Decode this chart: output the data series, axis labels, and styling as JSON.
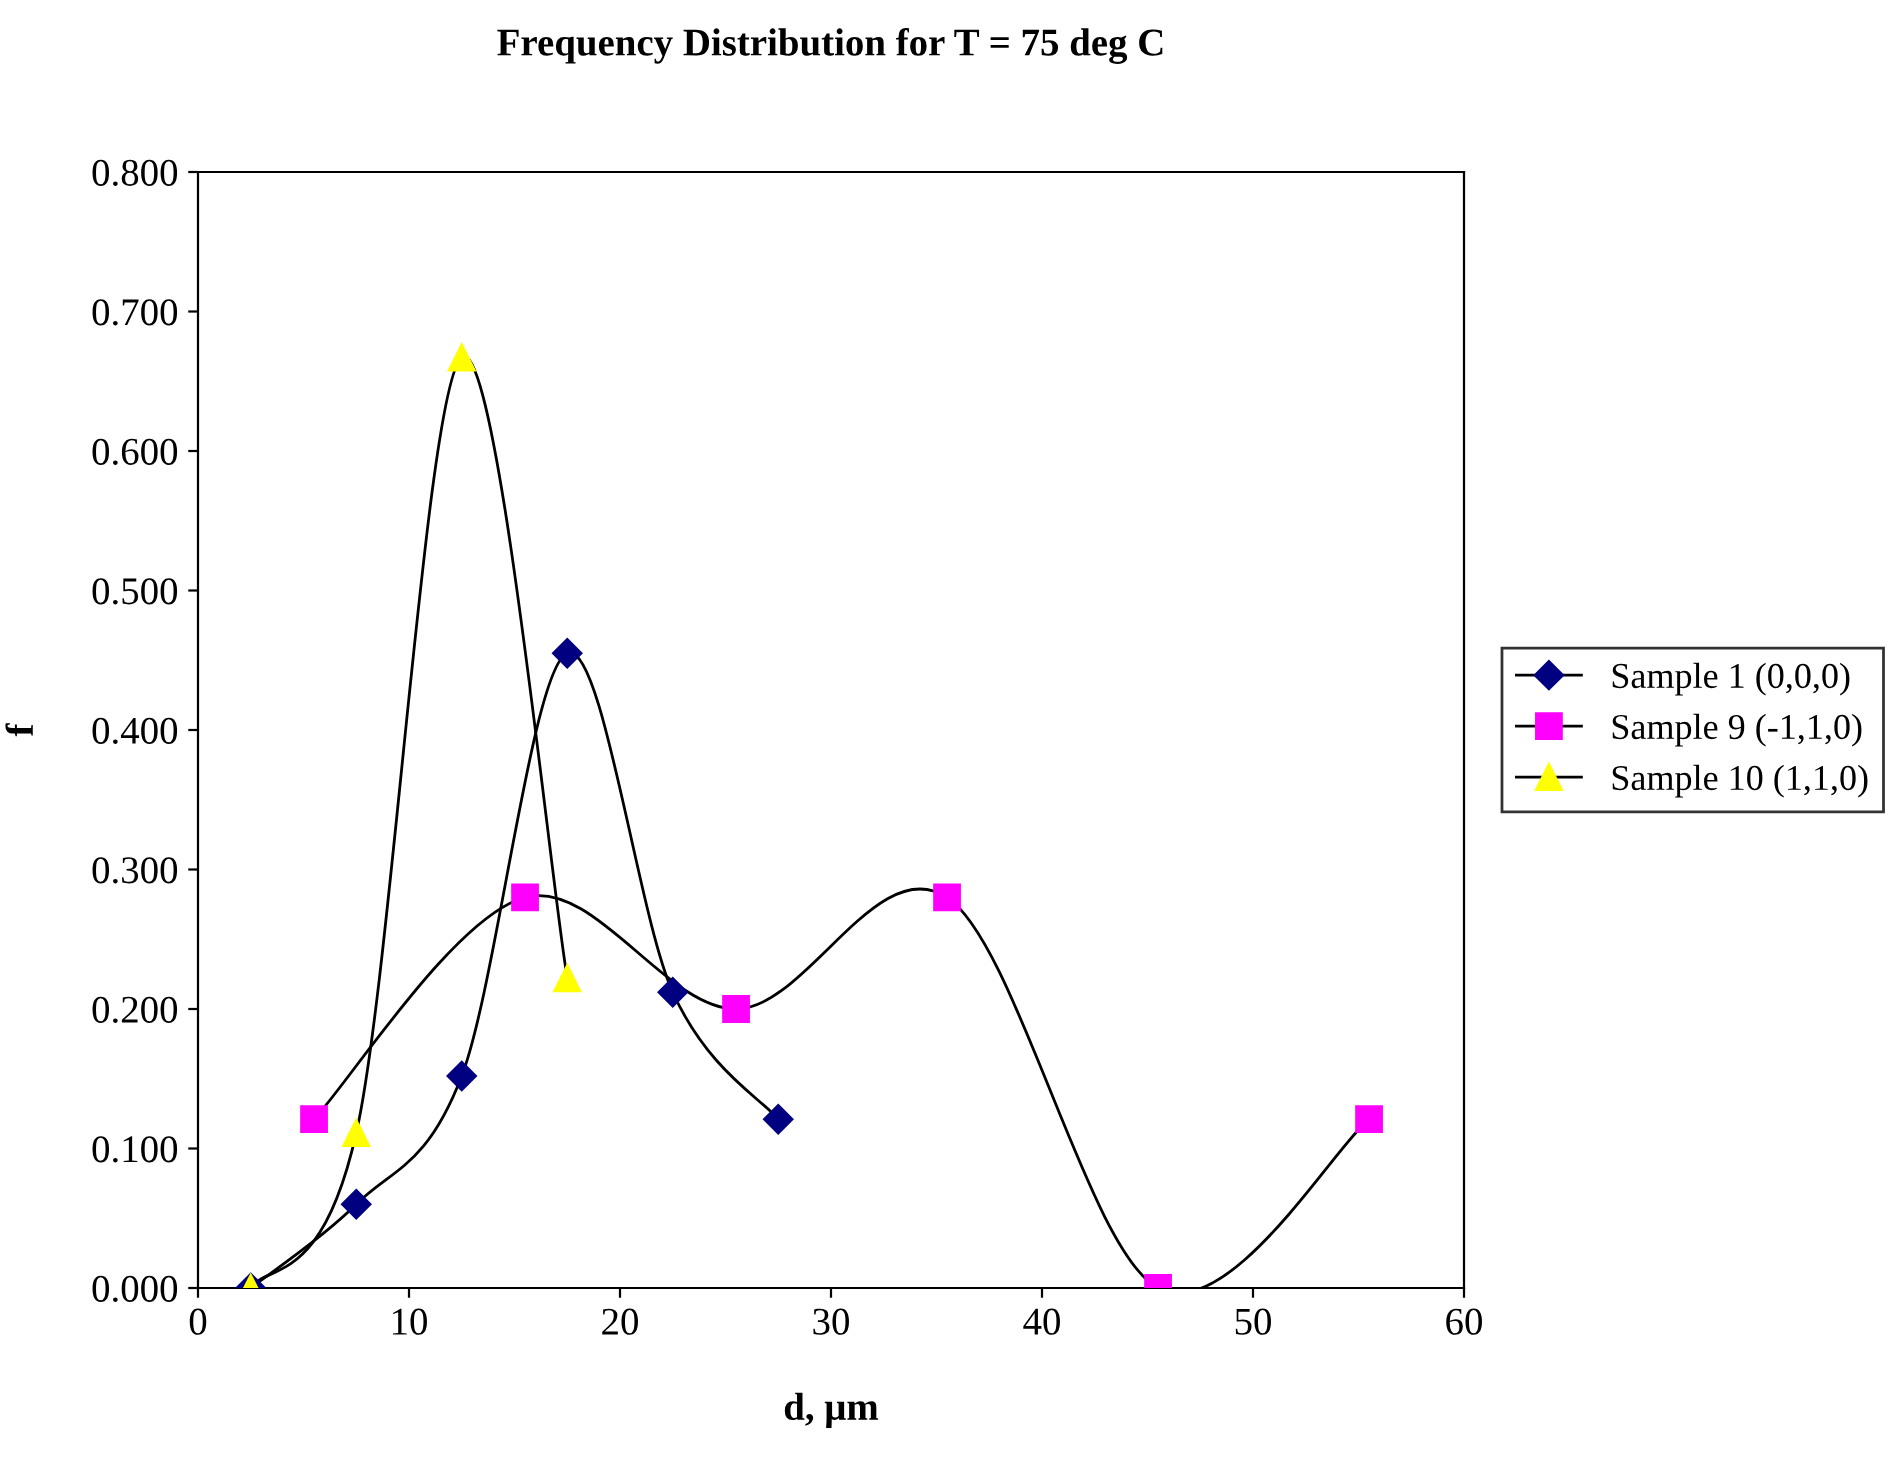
{
  "chart_data": {
    "type": "line",
    "title": "Frequency Distribution for T = 75 deg C",
    "xlabel": "d, μm",
    "ylabel": "f",
    "xlim": [
      0,
      60
    ],
    "xticks": [
      0,
      10,
      20,
      30,
      40,
      50,
      60
    ],
    "ylim": [
      0,
      0.8
    ],
    "yticks": [
      {
        "value": 0,
        "label": "0.000"
      },
      {
        "value": 0.1,
        "label": "0.100"
      },
      {
        "value": 0.2,
        "label": "0.200"
      },
      {
        "value": 0.3,
        "label": "0.300"
      },
      {
        "value": 0.4,
        "label": "0.400"
      },
      {
        "value": 0.5,
        "label": "0.500"
      },
      {
        "value": 0.6,
        "label": "0.600"
      },
      {
        "value": 0.7,
        "label": "0.700"
      },
      {
        "value": 0.8,
        "label": "0.800"
      }
    ],
    "grid": false,
    "legend": "right",
    "series": [
      {
        "name": "Sample 1 (0,0,0)",
        "color": "#000080",
        "marker": "diamond",
        "x": [
          2.5,
          7.5,
          12.5,
          17.5,
          22.5,
          27.5
        ],
        "values": [
          0.0,
          0.06,
          0.152,
          0.455,
          0.212,
          0.121
        ]
      },
      {
        "name": "Sample 9 (-1,1,0)",
        "color": "#ff00ff",
        "marker": "square",
        "x": [
          5.5,
          15.5,
          25.5,
          35.5,
          45.5,
          55.5
        ],
        "values": [
          0.121,
          0.28,
          0.2,
          0.28,
          0.0,
          0.121
        ]
      },
      {
        "name": "Sample 10 (1,1,0)",
        "color": "#ffff00",
        "marker": "triangle",
        "x": [
          2.5,
          7.5,
          12.5,
          17.5
        ],
        "values": [
          0.0,
          0.111,
          0.667,
          0.222
        ]
      }
    ]
  }
}
